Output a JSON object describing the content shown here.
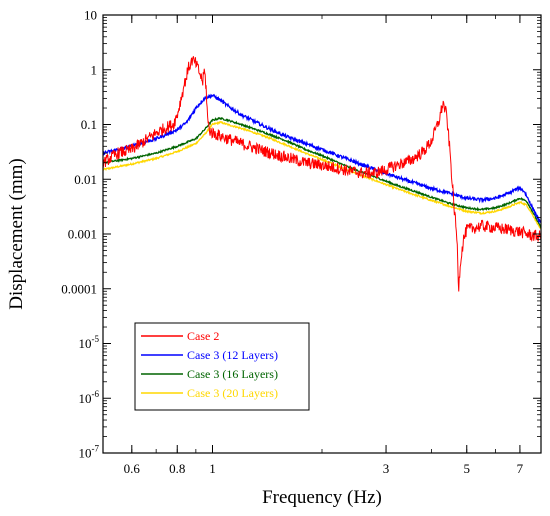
{
  "chart_data": {
    "type": "line",
    "title": "",
    "xlabel": "Frequency (Hz)",
    "ylabel": "Displacement (mm)",
    "x_scale": "log",
    "y_scale": "log",
    "xlim": [
      0.5,
      8
    ],
    "ylim": [
      1e-07,
      10
    ],
    "grid": false,
    "legend_position": "bottom-left",
    "x_ticks": [
      {
        "value": 0.6,
        "label": "0.6"
      },
      {
        "value": 0.8,
        "label": "0.8"
      },
      {
        "value": 1,
        "label": "1"
      },
      {
        "value": 3,
        "label": "3"
      },
      {
        "value": 5,
        "label": "5"
      },
      {
        "value": 7,
        "label": "7"
      }
    ],
    "y_ticks": [
      {
        "value": 10,
        "label": "10"
      },
      {
        "value": 1,
        "label": "1"
      },
      {
        "value": 0.1,
        "label": "0.1"
      },
      {
        "value": 0.01,
        "label": "0.01"
      },
      {
        "value": 0.001,
        "label": "0.001"
      },
      {
        "value": 0.0001,
        "label": "0.0001"
      },
      {
        "value": 1e-05,
        "mantissa": "10",
        "exponent": "-5"
      },
      {
        "value": 1e-06,
        "mantissa": "10",
        "exponent": "-6"
      },
      {
        "value": 1e-07,
        "mantissa": "10",
        "exponent": "-7"
      }
    ],
    "series": [
      {
        "name": "Case 2",
        "color": "#ff0000",
        "noise": 0.22,
        "points": [
          [
            0.5,
            0.02
          ],
          [
            0.55,
            0.03
          ],
          [
            0.6,
            0.035
          ],
          [
            0.65,
            0.05
          ],
          [
            0.7,
            0.07
          ],
          [
            0.75,
            0.09
          ],
          [
            0.78,
            0.1
          ],
          [
            0.8,
            0.15
          ],
          [
            0.82,
            0.3
          ],
          [
            0.84,
            0.6
          ],
          [
            0.86,
            1.1
          ],
          [
            0.88,
            1.5
          ],
          [
            0.9,
            1.3
          ],
          [
            0.92,
            0.9
          ],
          [
            0.94,
            0.6
          ],
          [
            0.95,
            1.0
          ],
          [
            0.96,
            0.5
          ],
          [
            0.97,
            0.12
          ],
          [
            0.98,
            0.08
          ],
          [
            1.0,
            0.07
          ],
          [
            1.1,
            0.055
          ],
          [
            1.2,
            0.045
          ],
          [
            1.4,
            0.032
          ],
          [
            1.6,
            0.025
          ],
          [
            1.8,
            0.02
          ],
          [
            2.0,
            0.018
          ],
          [
            2.2,
            0.016
          ],
          [
            2.4,
            0.014
          ],
          [
            2.6,
            0.013
          ],
          [
            2.8,
            0.013
          ],
          [
            3.0,
            0.015
          ],
          [
            3.2,
            0.018
          ],
          [
            3.5,
            0.022
          ],
          [
            3.8,
            0.032
          ],
          [
            4.0,
            0.05
          ],
          [
            4.2,
            0.12
          ],
          [
            4.3,
            0.25
          ],
          [
            4.4,
            0.15
          ],
          [
            4.5,
            0.03
          ],
          [
            4.6,
            0.004
          ],
          [
            4.7,
            0.0008
          ],
          [
            4.75,
            0.0001
          ],
          [
            4.8,
            0.0003
          ],
          [
            4.9,
            0.0008
          ],
          [
            5.0,
            0.0012
          ],
          [
            5.5,
            0.0014
          ],
          [
            6.0,
            0.0013
          ],
          [
            6.5,
            0.0012
          ],
          [
            7.0,
            0.0011
          ],
          [
            7.5,
            0.00095
          ],
          [
            8.0,
            0.0009
          ]
        ]
      },
      {
        "name": "Case 3 (12 Layers)",
        "color": "#0000ff",
        "noise": 0.06,
        "points": [
          [
            0.5,
            0.03
          ],
          [
            0.6,
            0.04
          ],
          [
            0.7,
            0.055
          ],
          [
            0.8,
            0.08
          ],
          [
            0.85,
            0.11
          ],
          [
            0.9,
            0.2
          ],
          [
            0.95,
            0.3
          ],
          [
            1.0,
            0.34
          ],
          [
            1.05,
            0.28
          ],
          [
            1.1,
            0.22
          ],
          [
            1.2,
            0.15
          ],
          [
            1.4,
            0.09
          ],
          [
            1.6,
            0.06
          ],
          [
            1.8,
            0.045
          ],
          [
            2.0,
            0.035
          ],
          [
            2.4,
            0.022
          ],
          [
            2.8,
            0.015
          ],
          [
            3.2,
            0.011
          ],
          [
            3.6,
            0.0085
          ],
          [
            4.0,
            0.0068
          ],
          [
            4.5,
            0.0055
          ],
          [
            5.0,
            0.0045
          ],
          [
            5.5,
            0.0042
          ],
          [
            6.0,
            0.0045
          ],
          [
            6.5,
            0.0055
          ],
          [
            6.8,
            0.0065
          ],
          [
            7.0,
            0.0068
          ],
          [
            7.2,
            0.006
          ],
          [
            7.5,
            0.0035
          ],
          [
            8.0,
            0.0015
          ]
        ]
      },
      {
        "name": "Case 3 (16 Layers)",
        "color": "#006400",
        "noise": 0.03,
        "points": [
          [
            0.5,
            0.02
          ],
          [
            0.6,
            0.024
          ],
          [
            0.7,
            0.03
          ],
          [
            0.8,
            0.04
          ],
          [
            0.9,
            0.055
          ],
          [
            0.95,
            0.08
          ],
          [
            1.0,
            0.12
          ],
          [
            1.05,
            0.13
          ],
          [
            1.1,
            0.12
          ],
          [
            1.2,
            0.1
          ],
          [
            1.4,
            0.07
          ],
          [
            1.6,
            0.05
          ],
          [
            1.8,
            0.035
          ],
          [
            2.0,
            0.027
          ],
          [
            2.4,
            0.016
          ],
          [
            2.8,
            0.011
          ],
          [
            3.2,
            0.0078
          ],
          [
            3.6,
            0.006
          ],
          [
            4.0,
            0.0047
          ],
          [
            4.5,
            0.0036
          ],
          [
            5.0,
            0.003
          ],
          [
            5.5,
            0.0028
          ],
          [
            6.0,
            0.003
          ],
          [
            6.5,
            0.0036
          ],
          [
            7.0,
            0.0045
          ],
          [
            7.3,
            0.004
          ],
          [
            7.6,
            0.0025
          ],
          [
            8.0,
            0.0013
          ]
        ]
      },
      {
        "name": "Case 3 (20 Layers)",
        "color": "#ffd700",
        "noise": 0.03,
        "points": [
          [
            0.5,
            0.015
          ],
          [
            0.6,
            0.019
          ],
          [
            0.7,
            0.024
          ],
          [
            0.8,
            0.032
          ],
          [
            0.9,
            0.045
          ],
          [
            0.95,
            0.065
          ],
          [
            1.0,
            0.1
          ],
          [
            1.05,
            0.11
          ],
          [
            1.1,
            0.1
          ],
          [
            1.2,
            0.085
          ],
          [
            1.4,
            0.06
          ],
          [
            1.6,
            0.042
          ],
          [
            1.8,
            0.03
          ],
          [
            2.0,
            0.023
          ],
          [
            2.4,
            0.014
          ],
          [
            2.8,
            0.0095
          ],
          [
            3.2,
            0.0068
          ],
          [
            3.6,
            0.0052
          ],
          [
            4.0,
            0.0041
          ],
          [
            4.5,
            0.0032
          ],
          [
            5.0,
            0.0026
          ],
          [
            5.5,
            0.0024
          ],
          [
            6.0,
            0.0026
          ],
          [
            6.5,
            0.0031
          ],
          [
            7.0,
            0.0038
          ],
          [
            7.3,
            0.0034
          ],
          [
            7.6,
            0.0022
          ],
          [
            8.0,
            0.0012
          ]
        ]
      }
    ]
  }
}
